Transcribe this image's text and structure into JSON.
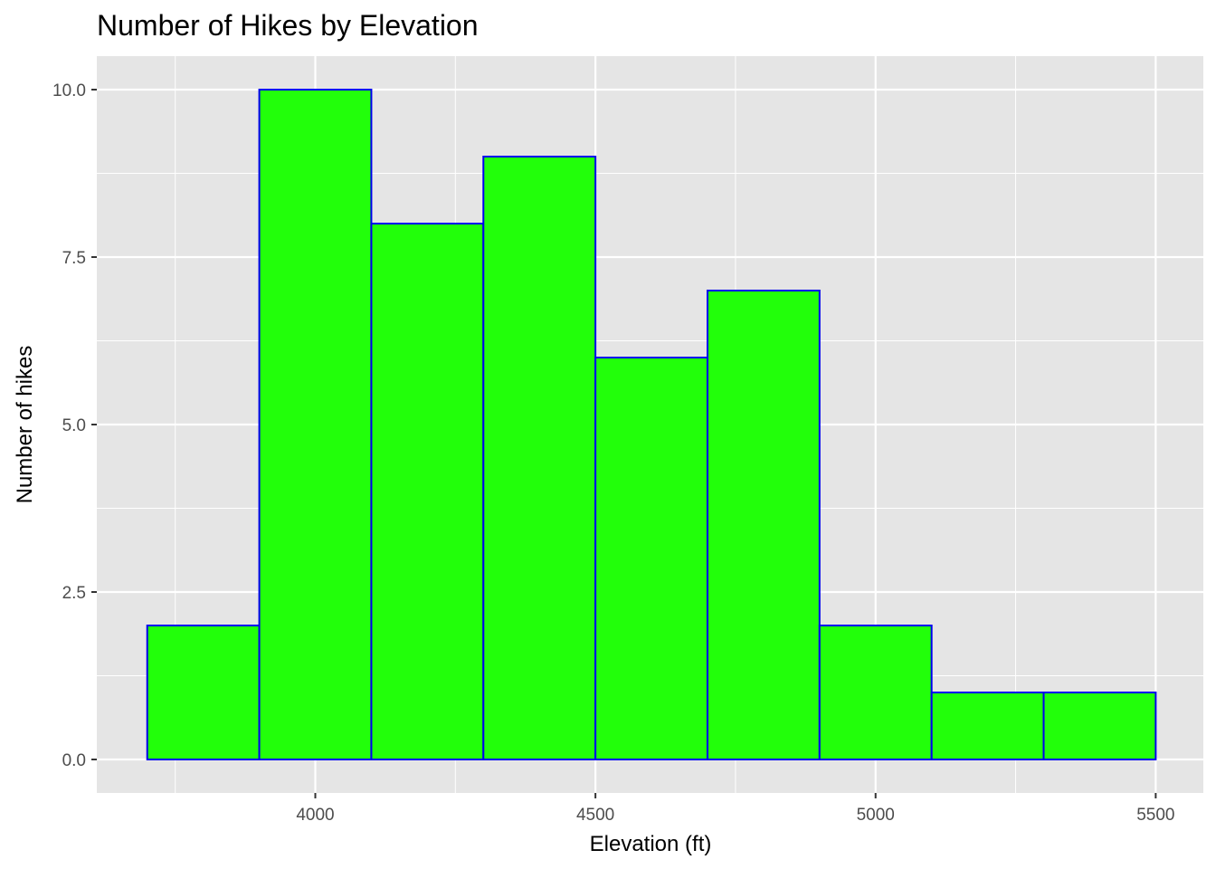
{
  "chart_data": {
    "type": "bar",
    "title": "Number of Hikes by Elevation",
    "xlabel": "Elevation (ft)",
    "ylabel": "Number of hikes",
    "bin_width": 200,
    "bins": [
      {
        "x0": 3700,
        "x1": 3900,
        "count": 2
      },
      {
        "x0": 3900,
        "x1": 4100,
        "count": 10
      },
      {
        "x0": 4100,
        "x1": 4300,
        "count": 8
      },
      {
        "x0": 4300,
        "x1": 4500,
        "count": 9
      },
      {
        "x0": 4500,
        "x1": 4700,
        "count": 6
      },
      {
        "x0": 4700,
        "x1": 4900,
        "count": 7
      },
      {
        "x0": 4900,
        "x1": 5100,
        "count": 2
      },
      {
        "x0": 5100,
        "x1": 5300,
        "count": 1
      },
      {
        "x0": 5300,
        "x1": 5500,
        "count": 1
      }
    ],
    "xlim": [
      3610,
      5585
    ],
    "ylim": [
      -0.5,
      10.5
    ],
    "x_ticks": [
      4000,
      4500,
      5000,
      5500
    ],
    "x_tick_labels": [
      "4000",
      "4500",
      "5000",
      "5500"
    ],
    "y_ticks": [
      0,
      2.5,
      5,
      7.5,
      10
    ],
    "y_tick_labels": [
      "0.0",
      "2.5",
      "5.0",
      "7.5",
      "10.0"
    ],
    "grid": true,
    "colors": {
      "bar_fill": "#22ff0a",
      "bar_outline": "#0000ee",
      "panel_background": "#e5e5e5",
      "grid_line": "#ffffff"
    }
  }
}
